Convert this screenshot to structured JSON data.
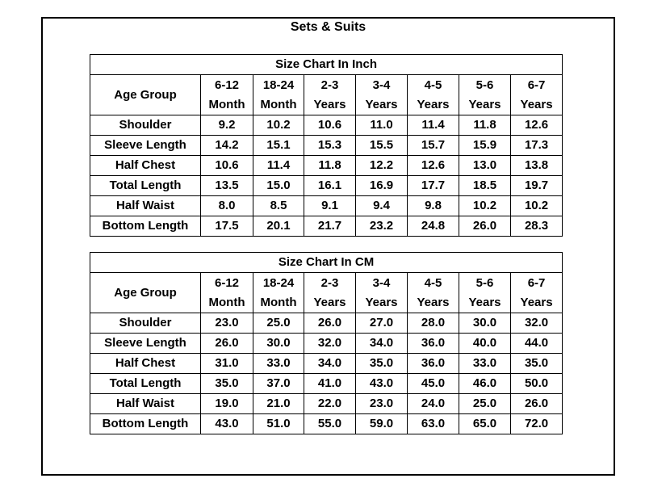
{
  "title": "Sets & Suits",
  "tables": [
    {
      "title": "Size Chart In Inch",
      "columns": [
        "Age Group",
        [
          "6-12",
          "Month"
        ],
        [
          "18-24",
          "Month"
        ],
        [
          "2-3",
          "Years"
        ],
        [
          "3-4",
          "Years"
        ],
        [
          "4-5",
          "Years"
        ],
        [
          "5-6",
          "Years"
        ],
        [
          "6-7",
          "Years"
        ]
      ],
      "rows": [
        [
          "Shoulder",
          "9.2",
          "10.2",
          "10.6",
          "11.0",
          "11.4",
          "11.8",
          "12.6"
        ],
        [
          "Sleeve Length",
          "14.2",
          "15.1",
          "15.3",
          "15.5",
          "15.7",
          "15.9",
          "17.3"
        ],
        [
          "Half Chest",
          "10.6",
          "11.4",
          "11.8",
          "12.2",
          "12.6",
          "13.0",
          "13.8"
        ],
        [
          "Total Length",
          "13.5",
          "15.0",
          "16.1",
          "16.9",
          "17.7",
          "18.5",
          "19.7"
        ],
        [
          "Half Waist",
          "8.0",
          "8.5",
          "9.1",
          "9.4",
          "9.8",
          "10.2",
          "10.2"
        ],
        [
          "Bottom Length",
          "17.5",
          "20.1",
          "21.7",
          "23.2",
          "24.8",
          "26.0",
          "28.3"
        ]
      ]
    },
    {
      "title": "Size Chart In CM",
      "columns": [
        "Age Group",
        [
          "6-12",
          "Month"
        ],
        [
          "18-24",
          "Month"
        ],
        [
          "2-3",
          "Years"
        ],
        [
          "3-4",
          "Years"
        ],
        [
          "4-5",
          "Years"
        ],
        [
          "5-6",
          "Years"
        ],
        [
          "6-7",
          "Years"
        ]
      ],
      "rows": [
        [
          "Shoulder",
          "23.0",
          "25.0",
          "26.0",
          "27.0",
          "28.0",
          "30.0",
          "32.0"
        ],
        [
          "Sleeve Length",
          "26.0",
          "30.0",
          "32.0",
          "34.0",
          "36.0",
          "40.0",
          "44.0"
        ],
        [
          "Half Chest",
          "31.0",
          "33.0",
          "34.0",
          "35.0",
          "36.0",
          "33.0",
          "35.0"
        ],
        [
          "Total Length",
          "35.0",
          "37.0",
          "41.0",
          "43.0",
          "45.0",
          "46.0",
          "50.0"
        ],
        [
          "Half Waist",
          "19.0",
          "21.0",
          "22.0",
          "23.0",
          "24.0",
          "25.0",
          "26.0"
        ],
        [
          "Bottom Length",
          "43.0",
          "51.0",
          "55.0",
          "59.0",
          "63.0",
          "65.0",
          "72.0"
        ]
      ]
    }
  ]
}
